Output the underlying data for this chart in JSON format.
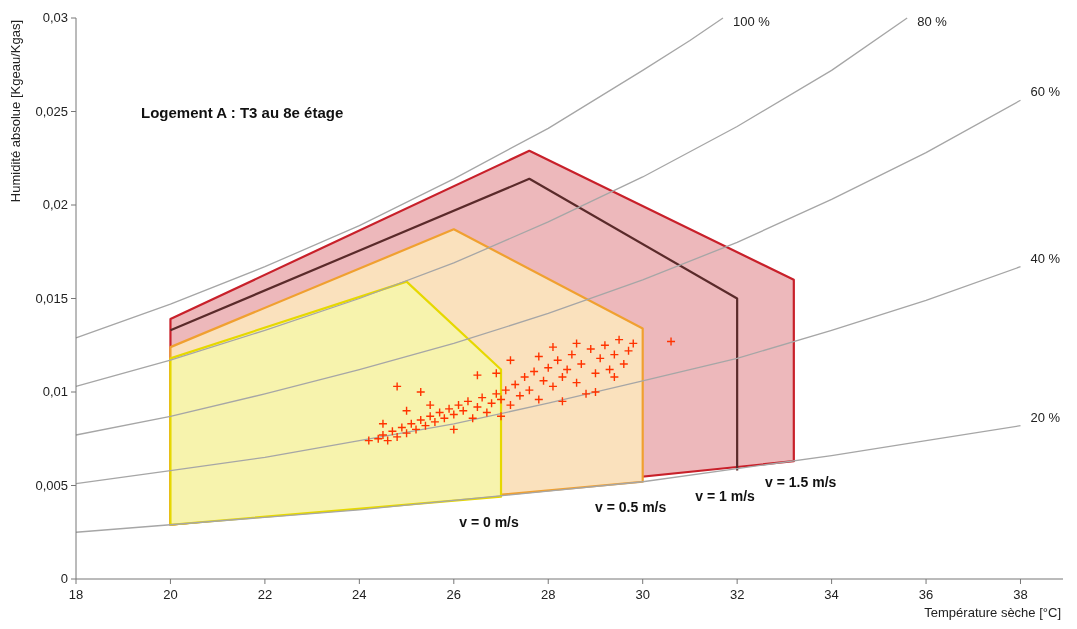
{
  "chart_data": {
    "type": "line",
    "title": "Logement A : T3 au 8e étage",
    "xlabel": "Température sèche [°C]",
    "ylabel": "Humidité absolue [Kgeau/Kgas]",
    "xlim": [
      18,
      38.9
    ],
    "xticks": [
      18,
      20,
      22,
      24,
      26,
      28,
      30,
      32,
      34,
      36,
      38
    ],
    "ylim": [
      0,
      0.03
    ],
    "yticks": [
      {
        "value": 0,
        "label": "0"
      },
      {
        "value": 0.005,
        "label": "0,005"
      },
      {
        "value": 0.01,
        "label": "0,01"
      },
      {
        "value": 0.015,
        "label": "0,015"
      },
      {
        "value": 0.02,
        "label": "0,02"
      },
      {
        "value": 0.025,
        "label": "0,025"
      },
      {
        "value": 0.03,
        "label": "0,03"
      }
    ],
    "grid": false,
    "legend": false,
    "series": [
      {
        "type": "area",
        "color": "#c8202a",
        "x": [
          20,
          20,
          27.6,
          33.2,
          33.2,
          20
        ],
        "values": [
          0.0029,
          0.0139,
          0.0229,
          0.016,
          0.0063,
          0.0029
        ]
      },
      {
        "color": "#5a2a2a",
        "x": [
          20,
          27.6,
          32,
          32
        ],
        "values": [
          0.0133,
          0.0214,
          0.015,
          0.0058
        ]
      },
      {
        "type": "area",
        "color": "#f0a030",
        "x": [
          20,
          20,
          26,
          30,
          30,
          20
        ],
        "values": [
          0.0029,
          0.0124,
          0.0187,
          0.0134,
          0.0052,
          0.0029
        ]
      },
      {
        "type": "area",
        "color": "#e6d800",
        "x": [
          20,
          20,
          25,
          27,
          27,
          20
        ],
        "values": [
          0.0029,
          0.0118,
          0.0159,
          0.0112,
          0.0044,
          0.0029
        ]
      },
      {
        "name": "100 %",
        "color": "#a6a6a6",
        "x": [
          18,
          20,
          22,
          24,
          26,
          28,
          30,
          31,
          31.7
        ],
        "values": [
          0.0129,
          0.0147,
          0.0167,
          0.0189,
          0.0214,
          0.0241,
          0.0272,
          0.0288,
          0.03
        ]
      },
      {
        "name": "80 %",
        "color": "#a6a6a6",
        "x": [
          18,
          20,
          22,
          24,
          26,
          28,
          30,
          32,
          34,
          35.6
        ],
        "values": [
          0.0103,
          0.0117,
          0.0133,
          0.015,
          0.0169,
          0.0191,
          0.0215,
          0.0242,
          0.0272,
          0.03
        ]
      },
      {
        "name": "60 %",
        "color": "#a6a6a6",
        "x": [
          18,
          20,
          22,
          24,
          26,
          28,
          30,
          32,
          34,
          36,
          38
        ],
        "values": [
          0.0077,
          0.0087,
          0.0099,
          0.0112,
          0.0126,
          0.0142,
          0.016,
          0.018,
          0.0203,
          0.0228,
          0.0256
        ]
      },
      {
        "name": "40 %",
        "color": "#a6a6a6",
        "x": [
          18,
          20,
          22,
          24,
          26,
          28,
          30,
          32,
          34,
          36,
          38
        ],
        "values": [
          0.0051,
          0.0058,
          0.0065,
          0.0074,
          0.0083,
          0.0094,
          0.0106,
          0.0118,
          0.0133,
          0.0149,
          0.0167
        ]
      },
      {
        "name": "20 %",
        "color": "#a6a6a6",
        "x": [
          18,
          20,
          22,
          24,
          26,
          28,
          30,
          32,
          34,
          36,
          38
        ],
        "values": [
          0.0025,
          0.0029,
          0.0033,
          0.0037,
          0.0042,
          0.0047,
          0.0052,
          0.0059,
          0.0066,
          0.0074,
          0.0082
        ]
      },
      {
        "type": "scatter",
        "marker": "cross",
        "color": "#ff3300",
        "x": [
          24.2,
          24.4,
          24.5,
          24.6,
          24.7,
          24.8,
          24.9,
          25.0,
          25.1,
          25.2,
          25.3,
          25.4,
          25.5,
          25.6,
          25.7,
          25.8,
          25.9,
          26.0,
          26.1,
          26.2,
          26.3,
          26.4,
          26.5,
          26.6,
          26.7,
          26.8,
          26.9,
          27.0,
          27.1,
          27.2,
          27.3,
          27.4,
          27.5,
          27.6,
          27.7,
          27.8,
          27.9,
          28.0,
          28.1,
          28.2,
          28.3,
          28.4,
          28.5,
          28.6,
          28.7,
          28.8,
          28.9,
          29.0,
          29.1,
          29.2,
          29.3,
          29.4,
          29.5,
          29.6,
          29.7,
          29.8,
          30.6,
          24.8,
          25.3,
          26.5,
          26.9,
          27.2,
          27.8,
          28.1,
          28.6,
          25.0,
          25.5,
          26.0,
          24.5,
          27.0,
          28.3,
          29.0,
          29.4
        ],
        "values": [
          0.0074,
          0.0075,
          0.0077,
          0.0074,
          0.0079,
          0.0076,
          0.0081,
          0.0078,
          0.0083,
          0.008,
          0.0085,
          0.0082,
          0.0087,
          0.0084,
          0.0089,
          0.0086,
          0.0091,
          0.0088,
          0.0093,
          0.009,
          0.0095,
          0.0086,
          0.0092,
          0.0097,
          0.0089,
          0.0094,
          0.0099,
          0.0096,
          0.0101,
          0.0093,
          0.0104,
          0.0098,
          0.0108,
          0.0101,
          0.0111,
          0.0096,
          0.0106,
          0.0113,
          0.0103,
          0.0117,
          0.0108,
          0.0112,
          0.012,
          0.0105,
          0.0115,
          0.0099,
          0.0123,
          0.011,
          0.0118,
          0.0125,
          0.0112,
          0.012,
          0.0128,
          0.0115,
          0.0122,
          0.0126,
          0.0127,
          0.0103,
          0.01,
          0.0109,
          0.011,
          0.0117,
          0.0119,
          0.0124,
          0.0126,
          0.009,
          0.0093,
          0.008,
          0.0083,
          0.0087,
          0.0095,
          0.01,
          0.0108
        ]
      }
    ],
    "annotations": [
      {
        "text": "v = 0 m/s",
        "x": 27,
        "y": 0.0044
      },
      {
        "text": "v = 0.5 m/s",
        "x": 30,
        "y": 0.0052
      },
      {
        "text": "v = 1 m/s",
        "x": 32,
        "y": 0.0058
      },
      {
        "text": "v = 1.5 m/s",
        "x": 33.6,
        "y": 0.0065
      }
    ]
  }
}
